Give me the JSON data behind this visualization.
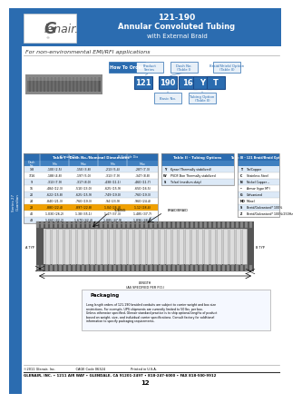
{
  "title_line1": "121-190",
  "title_line2": "Annular Convoluted Tubing",
  "title_line3": "with External Braid",
  "header_bg": "#2b6cb0",
  "sidebar_bg": "#2b6cb0",
  "sidebar_text": "Series 27\nGuardian",
  "logo_text": "Glenair.",
  "subtitle": "For non-environmental EMI/RFI applications",
  "how_to_order_label": "How To Order",
  "order_boxes": [
    "121",
    "190",
    "16",
    "Y",
    "T"
  ],
  "order_box_colors": [
    "#2b6cb0",
    "#2b6cb0",
    "#2b6cb0",
    "#2b6cb0",
    "#2b6cb0"
  ],
  "order_labels_top": [
    "Product\nSeries",
    "Dash No.\n(Table I)",
    "Braid/Shield Option\n(Table II)"
  ],
  "order_labels_bot": [
    "Basic No.",
    "Tubing Option\n(Table II)"
  ],
  "table1_title": "Table I - Dash No./Nominal Dimensions",
  "table1_headers": [
    "Dash",
    "A Inside Dia",
    "",
    "B Outside Dia",
    ""
  ],
  "table1_subheaders": [
    "No.",
    "Min",
    "Max",
    "Min",
    "Max"
  ],
  "table1_rows": [
    [
      "1/8",
      ".100 (2.5)",
      ".150 (3.8)",
      ".213 (5.4)",
      ".287 (7.3)"
    ],
    [
      "3/16",
      ".188 (4.8)",
      ".197 (5.0)",
      ".313 (7.9)",
      ".347 (8.8)"
    ],
    [
      "9",
      ".313 (7.9)",
      ".317 (8.0)",
      ".438 (11.1)",
      ".460 (11.7)"
    ],
    [
      "16",
      ".484 (12.3)",
      ".510 (13.0)",
      ".625 (15.9)",
      ".650 (16.5)"
    ],
    [
      "20",
      ".622 (15.8)",
      ".625 (15.9)",
      ".749 (19.0)",
      ".760 (19.3)"
    ],
    [
      "24",
      ".840 (21.3)",
      ".760 (19.3)",
      ".94 (23.9)",
      ".960 (24.4)"
    ],
    [
      "28",
      ".880 (22.4)",
      ".897 (22.8)",
      "1.04 (26.4)",
      "1.12 (28.4)"
    ],
    [
      "40",
      "1.030 (26.2)",
      "1.38 (35.1)",
      "1.47 (37.3)",
      "1.485 (37.7)"
    ],
    [
      "48",
      "1.660 (42.2)",
      "1.670 (42.4)",
      "1.885 (47.9)",
      "1.896 (48.2)"
    ]
  ],
  "table1_highlight_row": 6,
  "table2_title": "Table II - Tubing Options",
  "table2_rows": [
    [
      "Y",
      "Kynar (Thermally stabilized)"
    ],
    [
      "W",
      "PVDF-Non Thermally stabilized"
    ],
    [
      "S",
      "Tefzel (medium duty)"
    ]
  ],
  "table3_title": "Table III - 121 Braid/Braid Options",
  "table3_rows": [
    [
      "T",
      "Tin/Copper"
    ],
    [
      "C",
      "Stainless Steel"
    ],
    [
      "N",
      "Nickel Copper --"
    ],
    [
      "--",
      "Armor (type M*)"
    ],
    [
      "G",
      "Galvanized"
    ],
    [
      "MO",
      "Monel"
    ],
    [
      "S",
      "Braid/Galvanized* 100%"
    ],
    [
      "Z",
      "Braid/Galvanized* 100%/250Hz"
    ]
  ],
  "packaging_title": "Packaging",
  "packaging_text": "Long length orders of 121-190 braided conduits are subject to carrier weight and box size\nrestrictions. For example, UPS shipments are currently limited to 50 lbs. per box.\nUnless otherwise specified, Glenair standard practice is to ship optional lengths of product\nbased on weight, size, and individual carrier specifications. Consult factory for additional\ninformation to specify packaging requirements.",
  "footer_text": "©2011 Glenair, Inc.                    CAGE Code 06324                         Printed in U.S.A.",
  "footer_address": "GLENAIR, INC. • 1211 AIR WAY • GLENDALE, CA 91201-2497 • 818-247-6000 • FAX 818-500-9912",
  "footer_page": "12",
  "bg_color": "#ffffff",
  "table_header_bg": "#2b6cb0",
  "table_header_fg": "#ffffff",
  "table_row_even": "#dce9f7",
  "table_row_odd": "#ffffff",
  "table_highlight": "#f0a000"
}
